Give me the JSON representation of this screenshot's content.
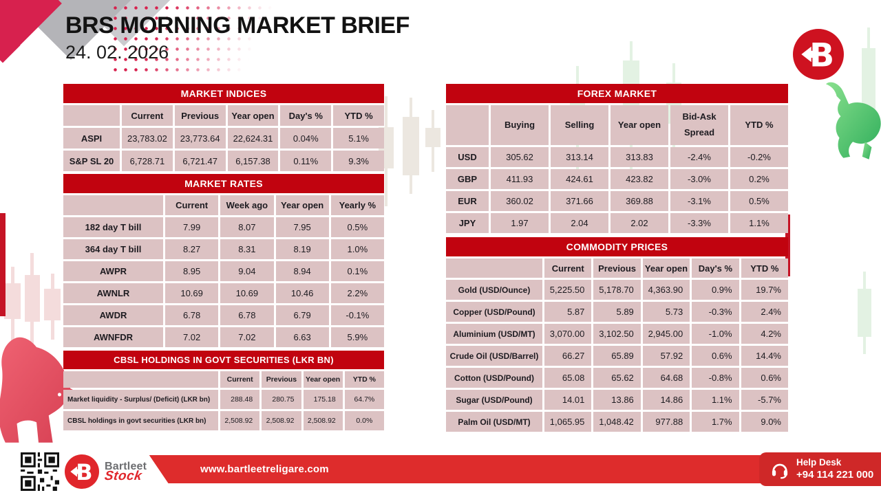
{
  "header": {
    "title": "BRS MORNING MARKET BRIEF",
    "date": "24. 02. 2026"
  },
  "logo": {
    "letter": "B",
    "brand_top": "Bartleet",
    "brand_bottom": "Stock"
  },
  "tables": {
    "market_indices": {
      "title": "MARKET INDICES",
      "columns": [
        "",
        "Current",
        "Previous",
        "Year open",
        "Day's %",
        "YTD %"
      ],
      "rows": [
        {
          "label": "ASPI",
          "values": [
            "23,783.02",
            "23,773.64",
            "22,624.31",
            "0.04%",
            "5.1%"
          ]
        },
        {
          "label": "S&P SL 20",
          "values": [
            "6,728.71",
            "6,721.47",
            "6,157.38",
            "0.11%",
            "9.3%"
          ]
        }
      ]
    },
    "market_rates": {
      "title": "MARKET RATES",
      "columns": [
        "",
        "Current",
        "Week ago",
        "Year open",
        "Yearly %"
      ],
      "rows": [
        {
          "label": "182 day T bill",
          "values": [
            "7.99",
            "8.07",
            "7.95",
            "0.5%"
          ]
        },
        {
          "label": "364 day T bill",
          "values": [
            "8.27",
            "8.31",
            "8.19",
            "1.0%"
          ]
        },
        {
          "label": "AWPR",
          "values": [
            "8.95",
            "9.04",
            "8.94",
            "0.1%"
          ]
        },
        {
          "label": "AWNLR",
          "values": [
            "10.69",
            "10.69",
            "10.46",
            "2.2%"
          ]
        },
        {
          "label": "AWDR",
          "values": [
            "6.78",
            "6.78",
            "6.79",
            "-0.1%"
          ]
        },
        {
          "label": "AWNFDR",
          "values": [
            "7.02",
            "7.02",
            "6.63",
            "5.9%"
          ]
        }
      ]
    },
    "cbsl_holdings": {
      "title": "CBSL HOLDINGS IN GOVT SECURITIES (LKR BN)",
      "columns": [
        "",
        "Current",
        "Previous",
        "Year open",
        "YTD %"
      ],
      "rows": [
        {
          "label": "Market liquidity - Surplus/ (Deficit) (LKR bn)",
          "values": [
            "288.48",
            "280.75",
            "175.18",
            "64.7%"
          ]
        },
        {
          "label": "CBSL holdings in govt securities (LKR bn)",
          "values": [
            "2,508.92",
            "2,508.92",
            "2,508.92",
            "0.0%"
          ]
        }
      ]
    },
    "forex_market": {
      "title": "FOREX MARKET",
      "columns": [
        "",
        "Buying",
        "Selling",
        "Year open",
        "Bid-Ask Spread",
        "YTD %"
      ],
      "rows": [
        {
          "label": "USD",
          "values": [
            "305.62",
            "313.14",
            "313.83",
            "-2.4%",
            "-0.2%"
          ]
        },
        {
          "label": "GBP",
          "values": [
            "411.93",
            "424.61",
            "423.82",
            "-3.0%",
            "0.2%"
          ]
        },
        {
          "label": "EUR",
          "values": [
            "360.02",
            "371.66",
            "369.88",
            "-3.1%",
            "0.5%"
          ]
        },
        {
          "label": "JPY",
          "values": [
            "1.97",
            "2.04",
            "2.02",
            "-3.3%",
            "1.1%"
          ]
        }
      ]
    },
    "commodity_prices": {
      "title": "COMMODITY PRICES",
      "columns": [
        "",
        "Current",
        "Previous",
        "Year open",
        "Day's %",
        "YTD %"
      ],
      "rows": [
        {
          "label": "Gold (USD/Ounce)",
          "values": [
            "5,225.50",
            "5,178.70",
            "4,363.90",
            "0.9%",
            "19.7%"
          ]
        },
        {
          "label": "Copper (USD/Pound)",
          "values": [
            "5.87",
            "5.89",
            "5.73",
            "-0.3%",
            "2.4%"
          ]
        },
        {
          "label": "Aluminium (USD/MT)",
          "values": [
            "3,070.00",
            "3,102.50",
            "2,945.00",
            "-1.0%",
            "4.2%"
          ]
        },
        {
          "label": "Crude Oil (USD/Barrel)",
          "values": [
            "66.27",
            "65.89",
            "57.92",
            "0.6%",
            "14.4%"
          ]
        },
        {
          "label": "Cotton (USD/Pound)",
          "values": [
            "65.08",
            "65.62",
            "64.68",
            "-0.8%",
            "0.6%"
          ]
        },
        {
          "label": "Sugar (USD/Pound)",
          "values": [
            "14.01",
            "13.86",
            "14.86",
            "1.1%",
            "-5.7%"
          ]
        },
        {
          "label": "Palm Oil (USD/MT)",
          "values": [
            "1,065.95",
            "1,048.42",
            "977.88",
            "1.7%",
            "9.0%"
          ]
        }
      ]
    }
  },
  "footer": {
    "website": "www.bartleetreligare.com",
    "help_desk_label": "Help Desk",
    "help_desk_phone": "+94 114 221 000"
  },
  "colors": {
    "accent_red": "#c1030f",
    "cell_pink": "#dcc2c3",
    "footer_red": "#de2c2c",
    "bull_green": "#3cb85c",
    "bear_red": "#e04f5f"
  }
}
